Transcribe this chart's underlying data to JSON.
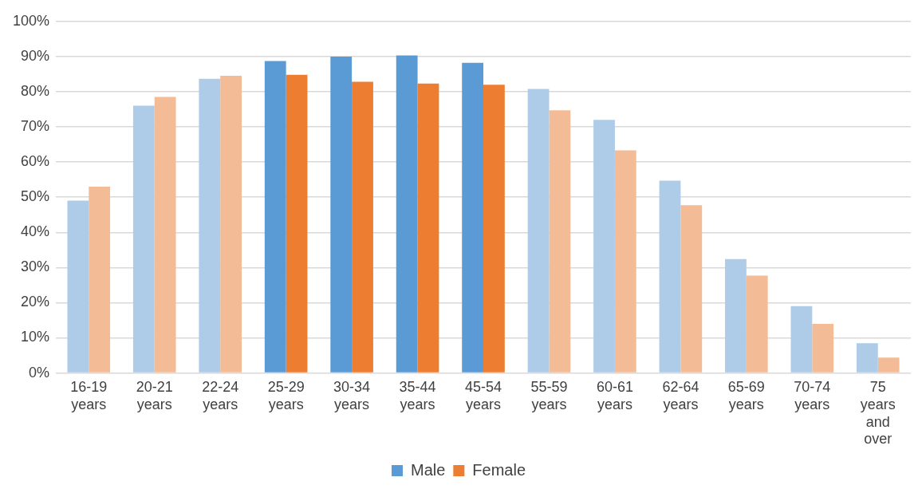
{
  "chart_data": {
    "type": "bar",
    "categories": [
      "16-19 years",
      "20-21 years",
      "22-24 years",
      "25-29 years",
      "30-34 years",
      "35-44 years",
      "45-54 years",
      "55-59 years",
      "60-61 years",
      "62-64 years",
      "65-69 years",
      "70-74 years",
      "75 years and over"
    ],
    "series": [
      {
        "name": "Male",
        "color": "#5b9bd5",
        "colors": [
          "#aecbe8",
          "#aecbe8",
          "#aecbe8",
          "#5b9bd5",
          "#5b9bd5",
          "#5b9bd5",
          "#5b9bd5",
          "#aecbe8",
          "#aecbe8",
          "#aecbe8",
          "#aecbe8",
          "#aecbe8",
          "#aecbe8"
        ],
        "values": [
          49,
          76,
          83.7,
          88.7,
          90,
          90.3,
          88.2,
          80.8,
          72,
          54.7,
          32.4,
          19,
          8.5
        ]
      },
      {
        "name": "Female",
        "color": "#ed7d31",
        "colors": [
          "#f4bc96",
          "#f4bc96",
          "#f4bc96",
          "#ed7d31",
          "#ed7d31",
          "#ed7d31",
          "#ed7d31",
          "#f4bc96",
          "#f4bc96",
          "#f4bc96",
          "#f4bc96",
          "#f4bc96",
          "#f4bc96"
        ],
        "values": [
          53,
          78.5,
          84.5,
          84.8,
          82.8,
          82.3,
          82,
          74.7,
          63.3,
          47.7,
          27.7,
          14,
          4.4
        ]
      }
    ],
    "ylim": [
      0,
      100
    ],
    "yticks": [
      {
        "value": 0,
        "label": "0%"
      },
      {
        "value": 10,
        "label": "10%"
      },
      {
        "value": 20,
        "label": "20%"
      },
      {
        "value": 30,
        "label": "30%"
      },
      {
        "value": 40,
        "label": "40%"
      },
      {
        "value": 50,
        "label": "50%"
      },
      {
        "value": 60,
        "label": "60%"
      },
      {
        "value": 70,
        "label": "70%"
      },
      {
        "value": 80,
        "label": "80%"
      },
      {
        "value": 90,
        "label": "90%"
      },
      {
        "value": 100,
        "label": "100%"
      }
    ],
    "grid": "y",
    "legend": "bottom"
  }
}
